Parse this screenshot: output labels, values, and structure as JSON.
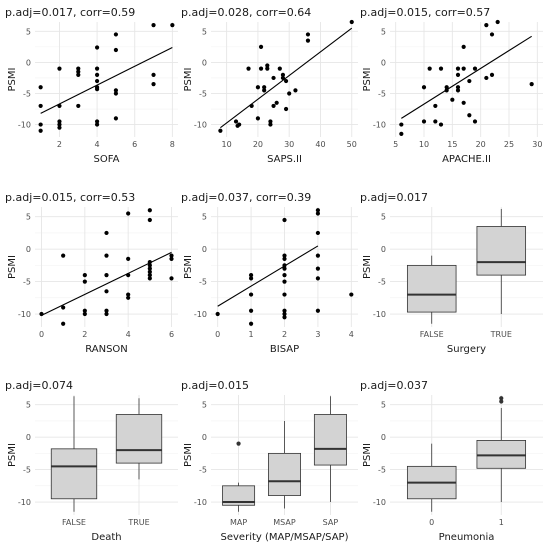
{
  "chart_data": [
    {
      "type": "scatter",
      "title": "p.adj=0.017, corr=0.59",
      "xlabel": "SOFA",
      "ylabel": "PSMI",
      "xlim": [
        0.7,
        8.3
      ],
      "ylim": [
        -12,
        6.5
      ],
      "xticks": [
        2,
        4,
        6,
        8
      ],
      "yticks": [
        -10,
        -5,
        0,
        5
      ],
      "fit": {
        "x": [
          1,
          8
        ],
        "y": [
          -8.2,
          2.4
        ]
      },
      "points": [
        {
          "x": 1,
          "y": -4.0
        },
        {
          "x": 1,
          "y": -7.0
        },
        {
          "x": 1,
          "y": -10.0
        },
        {
          "x": 1,
          "y": -11.0
        },
        {
          "x": 2,
          "y": -1.0
        },
        {
          "x": 2,
          "y": -7.0
        },
        {
          "x": 2,
          "y": -9.5
        },
        {
          "x": 2,
          "y": -10.0
        },
        {
          "x": 2,
          "y": -10.5
        },
        {
          "x": 3,
          "y": -1.0
        },
        {
          "x": 3,
          "y": -1.5
        },
        {
          "x": 3,
          "y": -2.0
        },
        {
          "x": 3,
          "y": -7.0
        },
        {
          "x": 4,
          "y": 2.4
        },
        {
          "x": 4,
          "y": -1.0
        },
        {
          "x": 4,
          "y": -2.0
        },
        {
          "x": 4,
          "y": -3.0
        },
        {
          "x": 4,
          "y": -4.0
        },
        {
          "x": 4,
          "y": -4.3
        },
        {
          "x": 4,
          "y": -9.5
        },
        {
          "x": 4,
          "y": -10.0
        },
        {
          "x": 5,
          "y": 4.5
        },
        {
          "x": 5,
          "y": 2.0
        },
        {
          "x": 5,
          "y": -4.5
        },
        {
          "x": 5,
          "y": -5.0
        },
        {
          "x": 5,
          "y": -9.0
        },
        {
          "x": 7,
          "y": 6.0
        },
        {
          "x": 7,
          "y": -2.0
        },
        {
          "x": 7,
          "y": -3.5
        },
        {
          "x": 8,
          "y": 6.0
        }
      ]
    },
    {
      "type": "scatter",
      "title": "p.adj=0.028, corr=0.64",
      "xlabel": "SAPS.II",
      "ylabel": "PSMI",
      "xlim": [
        5,
        52
      ],
      "ylim": [
        -12,
        6.5
      ],
      "xticks": [
        10,
        20,
        30,
        40,
        50
      ],
      "yticks": [
        -10,
        -5,
        0,
        5
      ],
      "fit": {
        "x": [
          8,
          50
        ],
        "y": [
          -10.5,
          5.5
        ]
      },
      "points": [
        {
          "x": 8,
          "y": -11.0
        },
        {
          "x": 13,
          "y": -9.5
        },
        {
          "x": 13.5,
          "y": -10.2
        },
        {
          "x": 14,
          "y": -10.0
        },
        {
          "x": 17,
          "y": -1.0
        },
        {
          "x": 18,
          "y": -7.0
        },
        {
          "x": 20,
          "y": -4.0
        },
        {
          "x": 20,
          "y": -9.0
        },
        {
          "x": 21,
          "y": 2.5
        },
        {
          "x": 21,
          "y": -1.0
        },
        {
          "x": 22,
          "y": -4.0
        },
        {
          "x": 22,
          "y": -4.5
        },
        {
          "x": 23,
          "y": -0.5
        },
        {
          "x": 23,
          "y": -1.0
        },
        {
          "x": 24,
          "y": -9.5
        },
        {
          "x": 24,
          "y": -10.0
        },
        {
          "x": 25,
          "y": -2.5
        },
        {
          "x": 25,
          "y": -7.0
        },
        {
          "x": 26,
          "y": -6.5
        },
        {
          "x": 27,
          "y": -1.0
        },
        {
          "x": 28,
          "y": -2.0
        },
        {
          "x": 28,
          "y": -2.5
        },
        {
          "x": 29,
          "y": -3.0
        },
        {
          "x": 29,
          "y": -7.5
        },
        {
          "x": 30,
          "y": -5.0
        },
        {
          "x": 32,
          "y": -4.5
        },
        {
          "x": 36,
          "y": 4.5
        },
        {
          "x": 36,
          "y": 3.5
        },
        {
          "x": 50,
          "y": 6.5
        }
      ]
    },
    {
      "type": "scatter",
      "title": "p.adj=0.015, corr=0.57",
      "xlabel": "APACHE.II",
      "ylabel": "PSMI",
      "xlim": [
        4,
        31
      ],
      "ylim": [
        -12,
        6.5
      ],
      "xticks": [
        5,
        10,
        15,
        20,
        25,
        30
      ],
      "yticks": [
        -10,
        -5,
        0,
        5
      ],
      "fit": {
        "x": [
          6,
          29
        ],
        "y": [
          -9.0,
          4.2
        ]
      },
      "points": [
        {
          "x": 6,
          "y": -10.0
        },
        {
          "x": 6,
          "y": -11.5
        },
        {
          "x": 10,
          "y": -9.5
        },
        {
          "x": 10,
          "y": -4.0
        },
        {
          "x": 11,
          "y": -1.0
        },
        {
          "x": 12,
          "y": -7.0
        },
        {
          "x": 12,
          "y": -9.5
        },
        {
          "x": 13,
          "y": -10.0
        },
        {
          "x": 13,
          "y": -1.0
        },
        {
          "x": 14,
          "y": -4.0
        },
        {
          "x": 14,
          "y": -4.5
        },
        {
          "x": 15,
          "y": -6.0
        },
        {
          "x": 16,
          "y": -1.0
        },
        {
          "x": 16,
          "y": -2.0
        },
        {
          "x": 16,
          "y": -4.0
        },
        {
          "x": 16,
          "y": -4.5
        },
        {
          "x": 17,
          "y": 2.5
        },
        {
          "x": 17,
          "y": -1.0
        },
        {
          "x": 17,
          "y": -6.5
        },
        {
          "x": 18,
          "y": -3.0
        },
        {
          "x": 18,
          "y": -8.5
        },
        {
          "x": 19,
          "y": -1.0
        },
        {
          "x": 19,
          "y": -9.5
        },
        {
          "x": 21,
          "y": 6.0
        },
        {
          "x": 21,
          "y": -2.5
        },
        {
          "x": 22,
          "y": 4.5
        },
        {
          "x": 22,
          "y": -2.0
        },
        {
          "x": 23,
          "y": 6.5
        },
        {
          "x": 29,
          "y": -3.5
        }
      ]
    },
    {
      "type": "scatter",
      "title": "p.adj=0.015, corr=0.53",
      "xlabel": "RANSON",
      "ylabel": "PSMI",
      "xlim": [
        -0.3,
        6.3
      ],
      "ylim": [
        -12,
        6.5
      ],
      "xticks": [
        0,
        2,
        4,
        6
      ],
      "yticks": [
        -10,
        -5,
        0,
        5
      ],
      "fit": {
        "x": [
          0,
          6
        ],
        "y": [
          -10.2,
          -0.5
        ]
      },
      "points": [
        {
          "x": 0,
          "y": -10.0
        },
        {
          "x": 1,
          "y": -1.0
        },
        {
          "x": 1,
          "y": -9.0
        },
        {
          "x": 1,
          "y": -11.5
        },
        {
          "x": 2,
          "y": -4.0
        },
        {
          "x": 2,
          "y": -5.0
        },
        {
          "x": 2,
          "y": -9.5
        },
        {
          "x": 2,
          "y": -10.0
        },
        {
          "x": 3,
          "y": 2.5
        },
        {
          "x": 3,
          "y": -1.0
        },
        {
          "x": 3,
          "y": -4.0
        },
        {
          "x": 3,
          "y": -6.5
        },
        {
          "x": 3,
          "y": -9.5
        },
        {
          "x": 3,
          "y": -10.0
        },
        {
          "x": 4,
          "y": 5.5
        },
        {
          "x": 4,
          "y": -1.5
        },
        {
          "x": 4,
          "y": -4.0
        },
        {
          "x": 4,
          "y": -7.0
        },
        {
          "x": 4,
          "y": -7.5
        },
        {
          "x": 5,
          "y": 6.0
        },
        {
          "x": 5,
          "y": 4.5
        },
        {
          "x": 5,
          "y": -2.0
        },
        {
          "x": 5,
          "y": -2.5
        },
        {
          "x": 5,
          "y": -3.0
        },
        {
          "x": 5,
          "y": -3.5
        },
        {
          "x": 5,
          "y": -4.0
        },
        {
          "x": 5,
          "y": -4.5
        },
        {
          "x": 6,
          "y": -1.0
        },
        {
          "x": 6,
          "y": -1.5
        },
        {
          "x": 6,
          "y": -4.5
        }
      ]
    },
    {
      "type": "scatter",
      "title": "p.adj=0.037, corr=0.39",
      "xlabel": "BISAP",
      "ylabel": "PSMI",
      "xlim": [
        -0.2,
        4.2
      ],
      "ylim": [
        -12,
        6.5
      ],
      "xticks": [
        0,
        1,
        2,
        3,
        4
      ],
      "yticks": [
        -10,
        -5,
        0,
        5
      ],
      "fit": {
        "x": [
          0,
          3
        ],
        "y": [
          -8.8,
          0.5
        ]
      },
      "points": [
        {
          "x": 0,
          "y": -10.0
        },
        {
          "x": 1,
          "y": -4.0
        },
        {
          "x": 1,
          "y": -4.5
        },
        {
          "x": 1,
          "y": -7.0
        },
        {
          "x": 1,
          "y": -9.5
        },
        {
          "x": 1,
          "y": -11.5
        },
        {
          "x": 2,
          "y": 4.5
        },
        {
          "x": 2,
          "y": -1.0
        },
        {
          "x": 2,
          "y": -1.5
        },
        {
          "x": 2,
          "y": -2.5
        },
        {
          "x": 2,
          "y": -3.0
        },
        {
          "x": 2,
          "y": -4.0
        },
        {
          "x": 2,
          "y": -5.0
        },
        {
          "x": 2,
          "y": -7.0
        },
        {
          "x": 2,
          "y": -9.5
        },
        {
          "x": 2,
          "y": -10.0
        },
        {
          "x": 2,
          "y": -10.5
        },
        {
          "x": 3,
          "y": 6.0
        },
        {
          "x": 3,
          "y": 5.5
        },
        {
          "x": 3,
          "y": 2.5
        },
        {
          "x": 3,
          "y": -1.0
        },
        {
          "x": 3,
          "y": -3.0
        },
        {
          "x": 3,
          "y": -4.5
        },
        {
          "x": 3,
          "y": -9.5
        },
        {
          "x": 4,
          "y": -7.0
        }
      ]
    },
    {
      "type": "box",
      "title": "p.adj=0.017",
      "xlabel": "Surgery",
      "ylabel": "PSMI",
      "ylim": [
        -12,
        6.5
      ],
      "yticks": [
        -10,
        -5,
        0,
        5
      ],
      "categories": [
        "FALSE",
        "TRUE"
      ],
      "boxes": [
        {
          "min": -11.5,
          "q1": -9.7,
          "median": -7.0,
          "q3": -2.5,
          "max": -1.0,
          "outliers": []
        },
        {
          "min": -10.0,
          "q1": -4.0,
          "median": -2.0,
          "q3": 3.5,
          "max": 6.2,
          "outliers": []
        }
      ]
    },
    {
      "type": "box",
      "title": "p.adj=0.074",
      "xlabel": "Death",
      "ylabel": "PSMI",
      "ylim": [
        -12,
        6.5
      ],
      "yticks": [
        -10,
        -5,
        0,
        5
      ],
      "categories": [
        "FALSE",
        "TRUE"
      ],
      "boxes": [
        {
          "min": -11.5,
          "q1": -9.5,
          "median": -4.5,
          "q3": -1.8,
          "max": 6.3,
          "outliers": []
        },
        {
          "min": -6.5,
          "q1": -4.0,
          "median": -2.0,
          "q3": 3.5,
          "max": 6.0,
          "outliers": []
        }
      ]
    },
    {
      "type": "box",
      "title": "p.adj=0.015",
      "xlabel": "Severity (MAP/MSAP/SAP)",
      "ylabel": "PSMI",
      "ylim": [
        -12,
        6.5
      ],
      "yticks": [
        -10,
        -5,
        0,
        5
      ],
      "categories": [
        "MAP",
        "MSAP",
        "SAP"
      ],
      "boxes": [
        {
          "min": -11.5,
          "q1": -10.5,
          "median": -10.0,
          "q3": -7.5,
          "max": -7.0,
          "outliers": [
            -1.0
          ]
        },
        {
          "min": -11.0,
          "q1": -9.0,
          "median": -6.8,
          "q3": -2.5,
          "max": 2.5,
          "outliers": []
        },
        {
          "min": -10.0,
          "q1": -4.3,
          "median": -1.8,
          "q3": 3.5,
          "max": 6.3,
          "outliers": []
        }
      ]
    },
    {
      "type": "box",
      "title": "p.adj=0.037",
      "xlabel": "Pneumonia",
      "ylabel": "PSMI",
      "ylim": [
        -12,
        6.5
      ],
      "yticks": [
        -10,
        -5,
        0,
        5
      ],
      "categories": [
        "0",
        "1"
      ],
      "boxes": [
        {
          "min": -11.5,
          "q1": -9.5,
          "median": -7.0,
          "q3": -4.5,
          "max": -1.0,
          "outliers": []
        },
        {
          "min": -10.0,
          "q1": -4.8,
          "median": -2.8,
          "q3": -0.5,
          "max": 4.5,
          "outliers": [
            5.5,
            6.0
          ]
        }
      ]
    }
  ]
}
